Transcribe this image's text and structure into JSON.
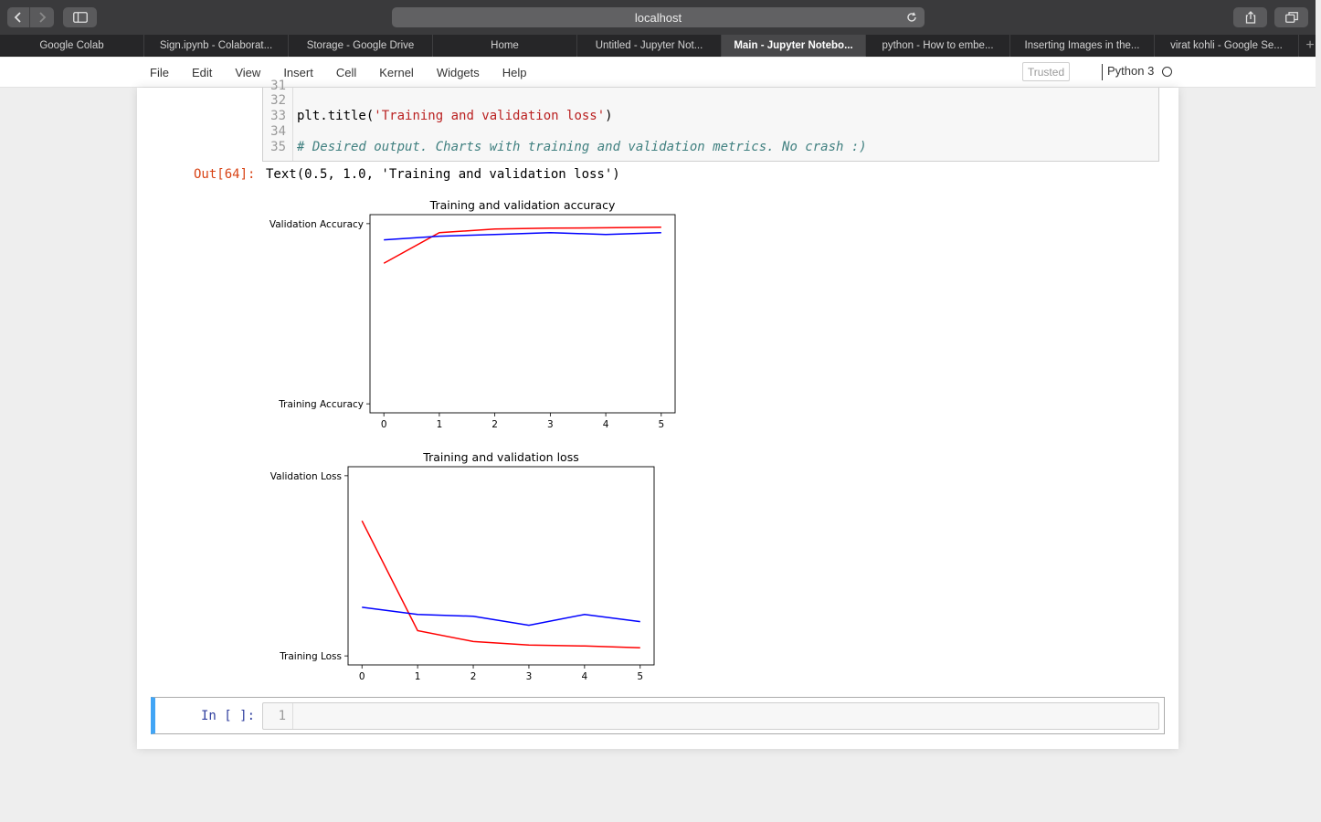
{
  "browser": {
    "address": "localhost",
    "tabs": [
      {
        "label": "Google Colab",
        "active": false
      },
      {
        "label": "Sign.ipynb - Colaborat...",
        "active": false
      },
      {
        "label": "Storage - Google Drive",
        "active": false
      },
      {
        "label": "Home",
        "active": false
      },
      {
        "label": "Untitled - Jupyter Not...",
        "active": false
      },
      {
        "label": "Main - Jupyter Notebo...",
        "active": true
      },
      {
        "label": "python - How to embe...",
        "active": false
      },
      {
        "label": "Inserting Images in the...",
        "active": false
      },
      {
        "label": "virat kohli - Google Se...",
        "active": false
      }
    ]
  },
  "menubar": {
    "items": [
      "File",
      "Edit",
      "View",
      "Insert",
      "Cell",
      "Kernel",
      "Widgets",
      "Help"
    ],
    "trusted": "Trusted",
    "kernel": "Python 3"
  },
  "cell": {
    "lines": [
      {
        "no": "31",
        "code": ""
      },
      {
        "no": "32",
        "code": ""
      },
      {
        "no": "33",
        "code_prefix": "plt.title(",
        "code_string": "'Training and validation loss'",
        "code_suffix": ")"
      },
      {
        "no": "34",
        "code": ""
      },
      {
        "no": "35",
        "comment": "# Desired output. Charts with training and validation metrics. No crash :)"
      }
    ],
    "out_prompt": "Out[64]:",
    "out_text": "Text(0.5, 1.0, 'Training and validation loss')"
  },
  "chart_data": [
    {
      "type": "line",
      "title": "Training and validation accuracy",
      "x": [
        0,
        1,
        2,
        3,
        4,
        5
      ],
      "yticklabels": [
        "Training Accuracy",
        "Validation Accuracy"
      ],
      "xticks": [
        "0",
        "1",
        "2",
        "3",
        "4",
        "5"
      ],
      "ylim": [
        0,
        1
      ],
      "series": [
        {
          "color": "#ff0000",
          "values": [
            0.78,
            0.95,
            0.97,
            0.975,
            0.977,
            0.98
          ]
        },
        {
          "color": "#0000ff",
          "values": [
            0.91,
            0.93,
            0.94,
            0.95,
            0.94,
            0.95
          ]
        }
      ]
    },
    {
      "type": "line",
      "title": "Training and validation loss",
      "x": [
        0,
        1,
        2,
        3,
        4,
        5
      ],
      "yticklabels": [
        "Training Loss",
        "Validation Loss"
      ],
      "xticks": [
        "0",
        "1",
        "2",
        "3",
        "4",
        "5"
      ],
      "ylim": [
        0,
        1
      ],
      "series": [
        {
          "color": "#ff0000",
          "values": [
            0.75,
            0.14,
            0.08,
            0.06,
            0.055,
            0.045
          ]
        },
        {
          "color": "#0000ff",
          "values": [
            0.27,
            0.23,
            0.22,
            0.17,
            0.23,
            0.19
          ]
        }
      ]
    }
  ],
  "empty_cell": {
    "prompt": "In [ ]:",
    "line_no": "1"
  }
}
